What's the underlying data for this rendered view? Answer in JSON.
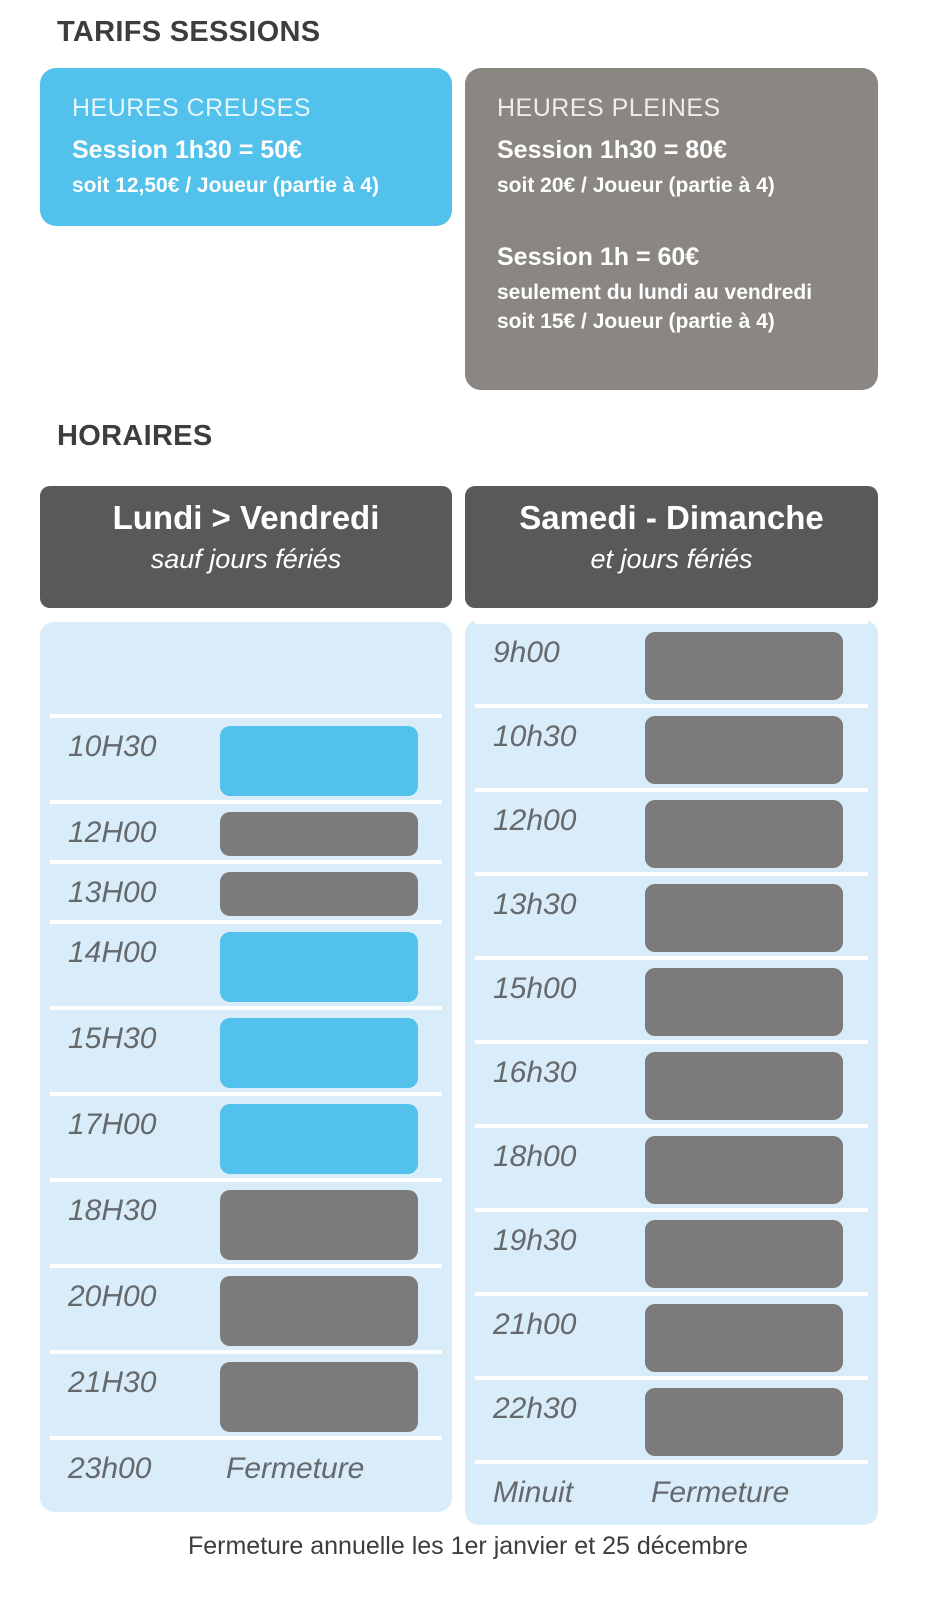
{
  "page": {
    "tarifs_title": "TARIFS SESSIONS",
    "horaires_title": "HORAIRES",
    "footer": "Fermeture annuelle les 1er janvier et 25 décembre"
  },
  "colors": {
    "accent_blue": "#52C1EB",
    "bar_gray": "#7B7B7B",
    "header_gray": "#595959",
    "card_gray": "#8A8682",
    "panel_light_blue": "#D8ECF9"
  },
  "cards": {
    "off_peak": {
      "title": "HEURES CREUSES",
      "price_main": "Session 1h30 = 50€",
      "price_detail": "soit 12,50€ / Joueur (partie à 4)"
    },
    "peak": {
      "title": "HEURES PLEINES",
      "offers": [
        {
          "price_main": "Session 1h30 = 80€",
          "lines": [
            "soit 20€ / Joueur (partie à 4)"
          ]
        },
        {
          "price_main": "Session 1h = 60€",
          "lines": [
            "seulement du lundi au vendredi",
            "soit 15€ / Joueur (partie à 4)"
          ]
        }
      ]
    }
  },
  "schedule": {
    "columns": [
      {
        "id": "weekdays",
        "header_title": "Lundi > Vendredi",
        "header_subtitle": "sauf jours fériés",
        "rows": [
          {
            "kind": "empty"
          },
          {
            "kind": "session",
            "time": "10H30",
            "tariff": "off_peak",
            "duration": "1h30"
          },
          {
            "kind": "session",
            "time": "12H00",
            "tariff": "peak",
            "duration": "1h"
          },
          {
            "kind": "session",
            "time": "13H00",
            "tariff": "peak",
            "duration": "1h"
          },
          {
            "kind": "session",
            "time": "14H00",
            "tariff": "off_peak",
            "duration": "1h30"
          },
          {
            "kind": "session",
            "time": "15H30",
            "tariff": "off_peak",
            "duration": "1h30"
          },
          {
            "kind": "session",
            "time": "17H00",
            "tariff": "off_peak",
            "duration": "1h30"
          },
          {
            "kind": "session",
            "time": "18H30",
            "tariff": "peak",
            "duration": "1h30"
          },
          {
            "kind": "session",
            "time": "20H00",
            "tariff": "peak",
            "duration": "1h30"
          },
          {
            "kind": "session",
            "time": "21H30",
            "tariff": "peak",
            "duration": "1h30"
          },
          {
            "kind": "closure",
            "time": "23h00",
            "note": "Fermeture"
          }
        ]
      },
      {
        "id": "weekend",
        "header_title": "Samedi - Dimanche",
        "header_subtitle": "et jours fériés",
        "rows": [
          {
            "kind": "session",
            "time": "9h00",
            "tariff": "peak",
            "duration": "1h30"
          },
          {
            "kind": "session",
            "time": "10h30",
            "tariff": "peak",
            "duration": "1h30"
          },
          {
            "kind": "session",
            "time": "12h00",
            "tariff": "peak",
            "duration": "1h30"
          },
          {
            "kind": "session",
            "time": "13h30",
            "tariff": "peak",
            "duration": "1h30"
          },
          {
            "kind": "session",
            "time": "15h00",
            "tariff": "peak",
            "duration": "1h30"
          },
          {
            "kind": "session",
            "time": "16h30",
            "tariff": "peak",
            "duration": "1h30"
          },
          {
            "kind": "session",
            "time": "18h00",
            "tariff": "peak",
            "duration": "1h30"
          },
          {
            "kind": "session",
            "time": "19h30",
            "tariff": "peak",
            "duration": "1h30"
          },
          {
            "kind": "session",
            "time": "21h00",
            "tariff": "peak",
            "duration": "1h30"
          },
          {
            "kind": "session",
            "time": "22h30",
            "tariff": "peak",
            "duration": "1h30"
          },
          {
            "kind": "closure",
            "time": "Minuit",
            "note": "Fermeture"
          }
        ]
      }
    ]
  }
}
